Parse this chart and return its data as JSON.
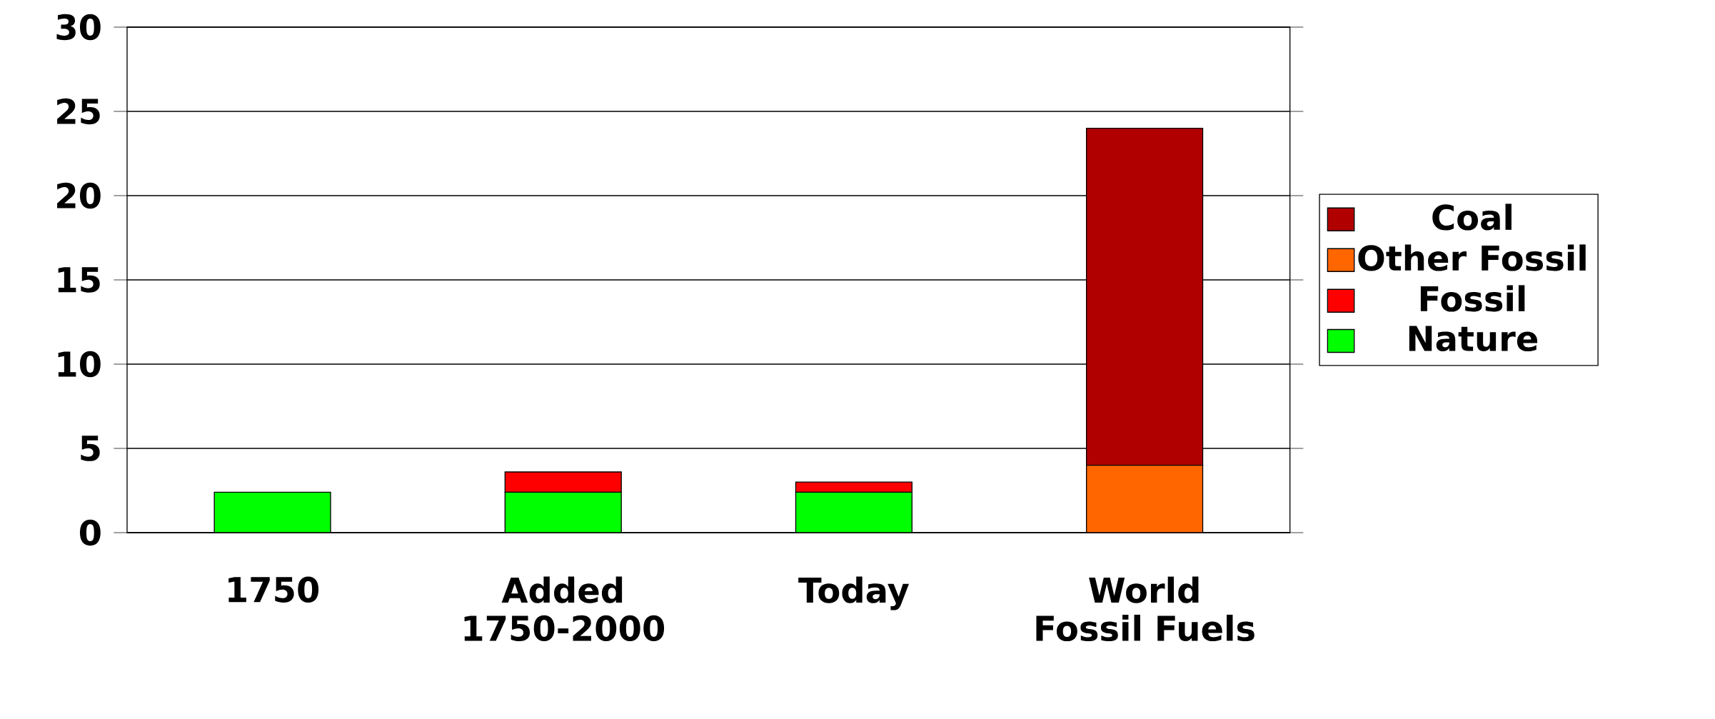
{
  "chart_data": {
    "type": "bar",
    "stacked": true,
    "categories": [
      "1750",
      "Added 1750-2000",
      "Today",
      "World Fossil Fuels"
    ],
    "series": [
      {
        "name": "Nature",
        "color": "#00ff00",
        "values": [
          2.4,
          2.4,
          2.4,
          0
        ]
      },
      {
        "name": "Fossil",
        "color": "#ff0000",
        "values": [
          0,
          1.2,
          0.6,
          0
        ]
      },
      {
        "name": "Other Fossil",
        "color": "#ff6600",
        "values": [
          0,
          0,
          0,
          4
        ]
      },
      {
        "name": "Coal",
        "color": "#b00000",
        "values": [
          0,
          0,
          0,
          20
        ]
      }
    ],
    "ylim": [
      0,
      30
    ],
    "yticks": [
      0,
      5,
      10,
      15,
      20,
      25,
      30
    ],
    "grid": "y",
    "legend": "right"
  }
}
